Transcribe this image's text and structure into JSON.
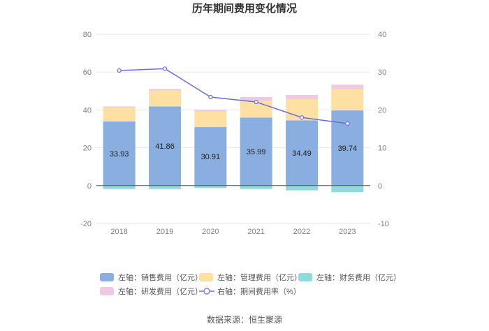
{
  "chart_data": {
    "type": "bar",
    "title": "历年期间费用变化情况",
    "categories": [
      "2018",
      "2019",
      "2020",
      "2021",
      "2022",
      "2023"
    ],
    "left_axis": {
      "ylim": [
        -20,
        80
      ],
      "ticks": [
        -20,
        0,
        20,
        40,
        60,
        80
      ]
    },
    "right_axis": {
      "ylim": [
        -10,
        40
      ],
      "ticks": [
        -10,
        0,
        10,
        20,
        30,
        40
      ]
    },
    "grid": true,
    "legend_position": "bottom",
    "series": [
      {
        "name": "左轴：销售费用（亿元）",
        "kind": "bar",
        "axis": "left",
        "color": "#8aaee0",
        "values": [
          33.93,
          41.86,
          30.91,
          35.99,
          34.49,
          39.74
        ]
      },
      {
        "name": "左轴：管理费用（亿元）",
        "kind": "bar",
        "axis": "left",
        "color": "#fde0a2",
        "values": [
          7.3,
          8.3,
          8.2,
          8.8,
          11.2,
          11.3
        ]
      },
      {
        "name": "左轴：财务费用（亿元）",
        "kind": "bar",
        "axis": "left",
        "color": "#8fdada",
        "values": [
          -1.8,
          -1.8,
          -1.2,
          -1.8,
          -2.5,
          -3.5
        ]
      },
      {
        "name": "左轴：研发费用（亿元）",
        "kind": "bar",
        "axis": "left",
        "color": "#efc8e4",
        "values": [
          0.6,
          0.9,
          1.0,
          2.0,
          2.2,
          2.3
        ]
      },
      {
        "name": "右轴：期间费用率（%）",
        "kind": "line",
        "axis": "right",
        "color": "#6b6be0",
        "values": [
          30.4,
          30.9,
          23.4,
          22.1,
          18.0,
          16.4
        ]
      }
    ],
    "bar_value_labels_series": 0
  },
  "footer": {
    "source": "数据来源：恒生聚源"
  }
}
